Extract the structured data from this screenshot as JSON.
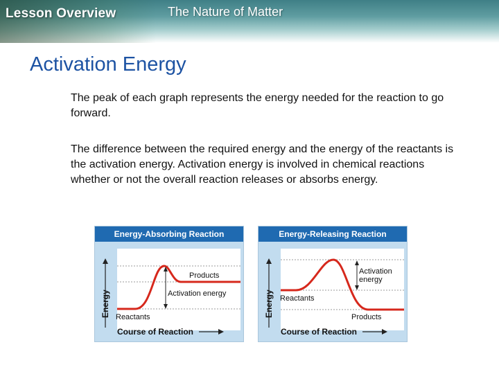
{
  "header": {
    "lesson_label": "Lesson Overview",
    "section_title": "The Nature of Matter"
  },
  "slide": {
    "title": "Activation Energy",
    "paragraphs": [
      "The peak of each graph represents the energy needed for the reaction to go forward.",
      "The difference between the required energy and the energy of the reactants is the activation energy.  Activation energy is involved in chemical reactions whether or not the overall reaction releases or absorbs energy."
    ]
  },
  "figures": {
    "absorbing": {
      "title": "Energy-Absorbing Reaction",
      "y_label": "Energy",
      "x_label": "Course of Reaction",
      "start_label": "Reactants",
      "end_label": "Products",
      "gap_label": "Activation energy"
    },
    "releasing": {
      "title": "Energy-Releasing Reaction",
      "y_label": "Energy",
      "x_label": "Course of Reaction",
      "start_label": "Reactants",
      "end_label": "Products",
      "gap_label_line1": "Activation",
      "gap_label_line2": "energy"
    }
  },
  "colors": {
    "title_blue": "#1d53a3",
    "panel_header": "#1f6ab1",
    "panel_bg": "#c2dcef",
    "curve_red": "#d6281c"
  }
}
